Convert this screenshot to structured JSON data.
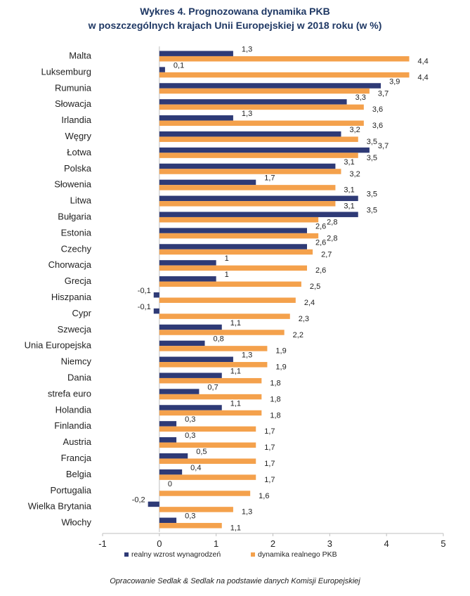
{
  "chart_data": {
    "type": "bar",
    "orientation": "horizontal",
    "title": "Wykres 4. Prognozowana dynamika PKB",
    "subtitle": "w poszczególnych krajach Unii Europejskiej w 2018 roku (w %)",
    "xlim": [
      -1,
      5
    ],
    "x_ticks": [
      -1,
      0,
      1,
      2,
      3,
      4,
      5
    ],
    "legend_position": "bottom",
    "categories": [
      "Malta",
      "Luksemburg",
      "Rumunia",
      "Słowacja",
      "Irlandia",
      "Węgry",
      "Łotwa",
      "Polska",
      "Słowenia",
      "Litwa",
      "Bułgaria",
      "Estonia",
      "Czechy",
      "Chorwacja",
      "Grecja",
      "Hiszpania",
      "Cypr",
      "Szwecja",
      "Unia Europejska",
      "Niemcy",
      "Dania",
      "strefa euro",
      "Holandia",
      "Finlandia",
      "Austria",
      "Francja",
      "Belgia",
      "Portugalia",
      "Wielka Brytania",
      "Włochy"
    ],
    "series": [
      {
        "name": "realny wzrost wynagrodzeń",
        "color": "#2e3a76",
        "values": [
          1.3,
          0.1,
          3.9,
          3.3,
          1.3,
          3.2,
          3.7,
          3.1,
          1.7,
          3.5,
          3.5,
          2.6,
          2.6,
          1,
          1,
          -0.1,
          -0.1,
          1.1,
          0.8,
          1.3,
          1.1,
          0.7,
          1.1,
          0.3,
          0.3,
          0.5,
          0.4,
          0,
          -0.2,
          0.3
        ],
        "labels": [
          "1,3",
          "0,1",
          "3,9",
          "3,3",
          "1,3",
          "3,2",
          "3,7",
          "3,1",
          "1,7",
          "3,5",
          "3,5",
          "2,6",
          "2,6",
          "1",
          "1",
          "-0,1",
          "-0,1",
          "1,1",
          "0,8",
          "1,3",
          "1,1",
          "0,7",
          "1,1",
          "0,3",
          "0,3",
          "0,5",
          "0,4",
          "0",
          "-0,2",
          "0,3"
        ]
      },
      {
        "name": "dynamika realnego PKB",
        "color": "#f4a14c",
        "values": [
          4.4,
          4.4,
          3.7,
          3.6,
          3.6,
          3.5,
          3.5,
          3.2,
          3.1,
          3.1,
          2.8,
          2.8,
          2.7,
          2.6,
          2.5,
          2.4,
          2.3,
          2.2,
          1.9,
          1.9,
          1.8,
          1.8,
          1.8,
          1.7,
          1.7,
          1.7,
          1.7,
          1.6,
          1.3,
          1.1
        ],
        "labels": [
          "4,4",
          "4,4",
          "3,7",
          "3,6",
          "3,6",
          "3,5",
          "3,5",
          "3,2",
          "3,1",
          "3,1",
          "2,8",
          "2,8",
          "2,7",
          "2,6",
          "2,5",
          "2,4",
          "2,3",
          "2,2",
          "1,9",
          "1,9",
          "1,8",
          "1,8",
          "1,8",
          "1,7",
          "1,7",
          "1,7",
          "1,7",
          "1,6",
          "1,3",
          "1,1"
        ]
      }
    ]
  },
  "source_note": "Opracowanie Sedlak & Sedlak na podstawie danych Komisji Europejskiej"
}
